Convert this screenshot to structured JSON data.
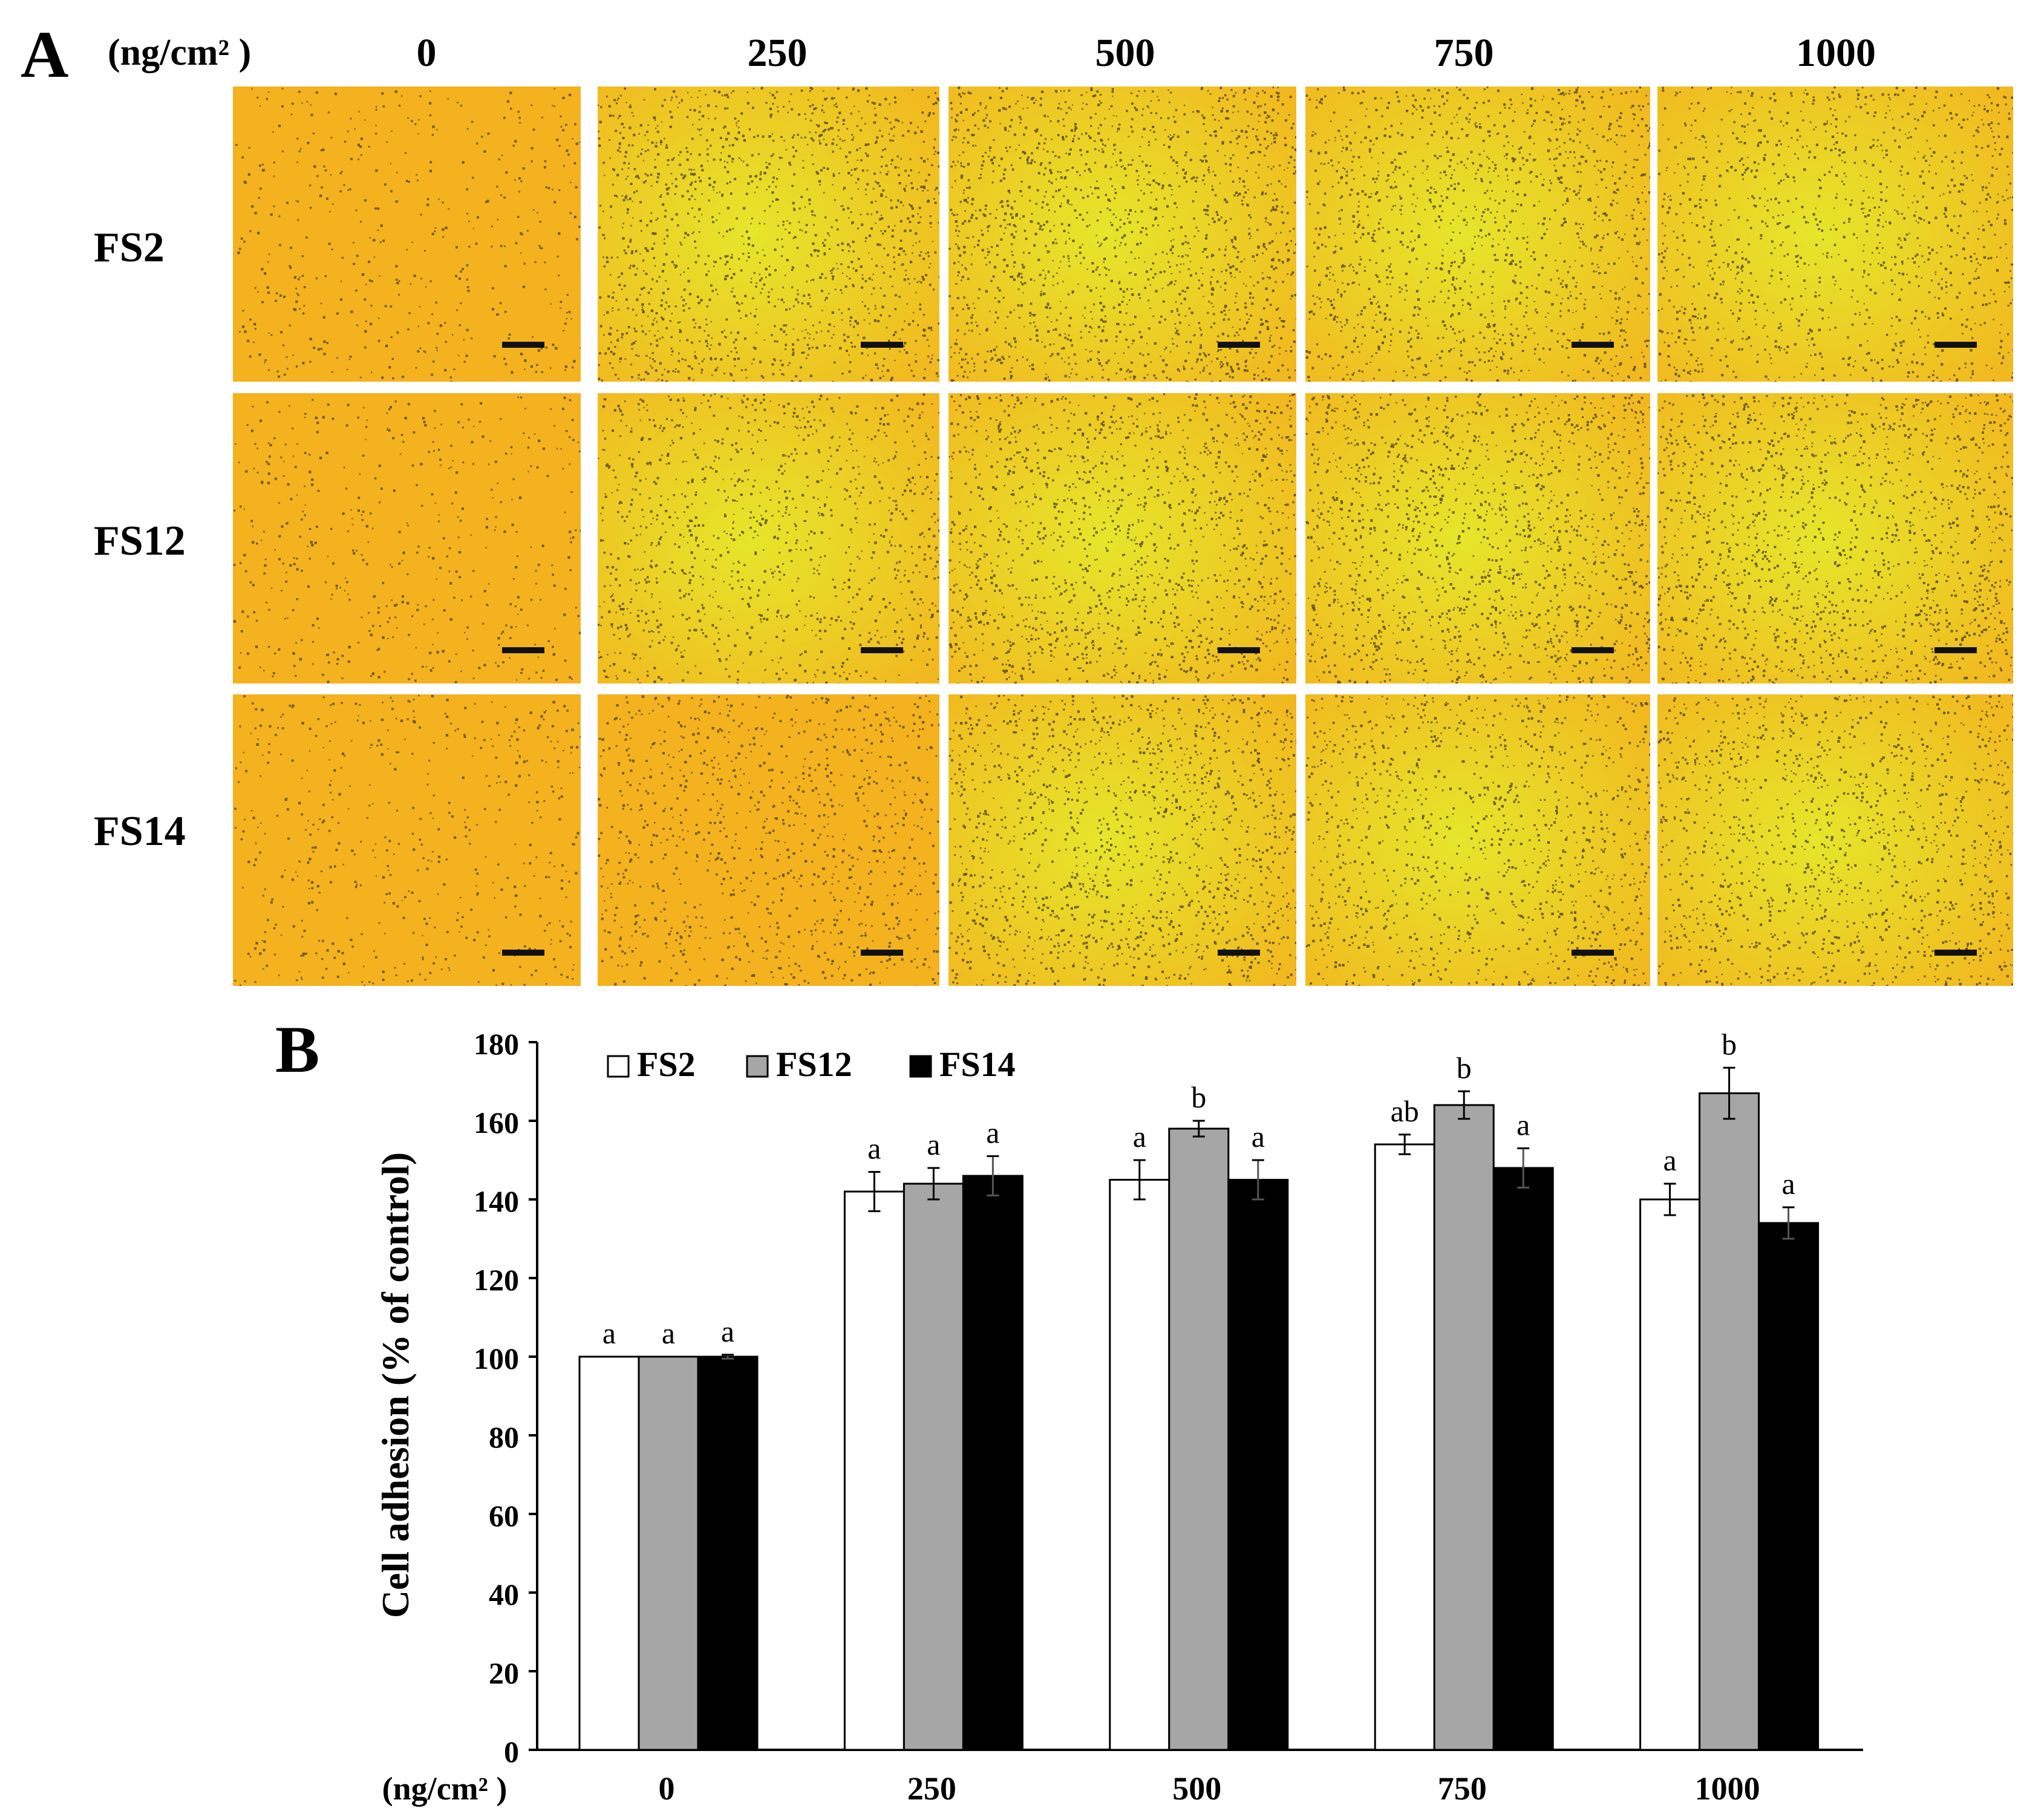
{
  "panelA": {
    "letter": "A",
    "unit": "(ng/cm² )",
    "columns": [
      "0",
      "250",
      "500",
      "750",
      "1000"
    ],
    "rows": [
      "FS2",
      "FS12",
      "FS14"
    ],
    "image_colors": {
      "base": "#f3b21e",
      "bright": "#e6e62a",
      "cell": "#4a3b18"
    },
    "cell_density": [
      [
        0.18,
        0.55,
        0.62,
        0.52,
        0.45
      ],
      [
        0.18,
        0.42,
        0.55,
        0.58,
        0.6
      ],
      [
        0.2,
        0.38,
        0.55,
        0.45,
        0.5
      ]
    ]
  },
  "panelB": {
    "letter": "B"
  },
  "chart_data": {
    "type": "bar",
    "ylabel": "Cell adhesion (% of control)",
    "xlabel": "(ng/cm² )",
    "categories": [
      "0",
      "250",
      "500",
      "750",
      "1000"
    ],
    "ylim": [
      0,
      180
    ],
    "yticks": [
      "0",
      "20",
      "40",
      "60",
      "80",
      "100",
      "120",
      "140",
      "160",
      "180"
    ],
    "grid": false,
    "legend_position": "top-left",
    "series": [
      {
        "name": "FS2",
        "color": "#ffffff",
        "values": [
          100,
          142,
          145,
          154,
          140
        ],
        "errors": [
          0,
          5,
          5,
          2.5,
          4
        ],
        "labels": [
          "a",
          "a",
          "a",
          "ab",
          "a"
        ]
      },
      {
        "name": "FS12",
        "color": "#a6a6a6",
        "values": [
          100,
          144,
          158,
          164,
          167
        ],
        "errors": [
          0,
          4,
          2,
          3.5,
          6.5
        ],
        "labels": [
          "a",
          "a",
          "b",
          "b",
          "b"
        ]
      },
      {
        "name": "FS14",
        "color": "#000000",
        "values": [
          100,
          146,
          145,
          148,
          134
        ],
        "errors": [
          0.5,
          5,
          5,
          5,
          4
        ],
        "labels": [
          "a",
          "a",
          "a",
          "a",
          "a"
        ]
      }
    ]
  }
}
